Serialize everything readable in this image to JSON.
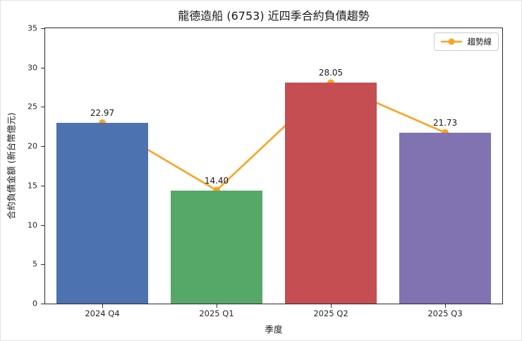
{
  "title": "龍德造船 (6753) 近四季合約負債趨勢",
  "chart_data": {
    "type": "bar",
    "title": "龍德造船 (6753) 近四季合約負債趨勢",
    "xlabel": "季度",
    "ylabel": "合約負債金額 (新台幣億元)",
    "categories": [
      "2024 Q4",
      "2025 Q1",
      "2025 Q2",
      "2025 Q3"
    ],
    "values": [
      22.97,
      14.4,
      28.05,
      21.73
    ],
    "value_labels": [
      "22.97",
      "14.40",
      "28.05",
      "21.73"
    ],
    "bar_colors": [
      "#4C72B0",
      "#55A868",
      "#C44E52",
      "#8172B2"
    ],
    "series": [
      {
        "name": "趨勢線",
        "type": "line",
        "values": [
          22.97,
          14.4,
          28.05,
          21.73
        ],
        "color": "#FCA321",
        "marker": "circle"
      }
    ],
    "ylim": [
      0,
      35
    ],
    "yticks": [
      0,
      5,
      10,
      15,
      20,
      25,
      30,
      35
    ],
    "grid": false,
    "legend": {
      "label": "趨勢線",
      "position": "upper right",
      "line_color": "#FCA321"
    }
  }
}
